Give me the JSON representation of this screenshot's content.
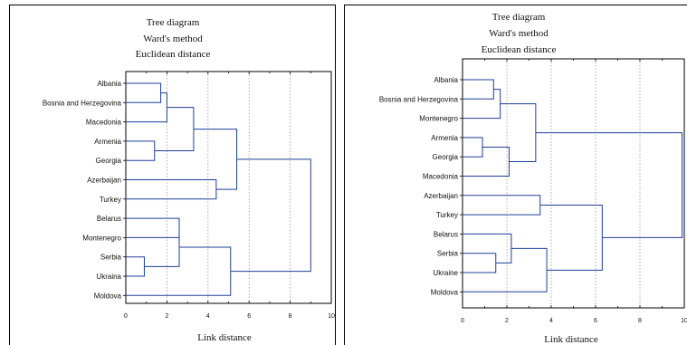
{
  "chart_data": [
    {
      "type": "dendrogram",
      "title": [
        "Tree diagram",
        "Ward's method",
        "Euclidean distance"
      ],
      "xlabel": "Link distance",
      "xlim": [
        0,
        10
      ],
      "xticks": [
        "0",
        "2",
        "4",
        "6",
        "8",
        "10"
      ],
      "grid": true,
      "leaves": [
        "Albania",
        "Bosnia and Herzegovina",
        "Macedonia",
        "Armenia",
        "Georgia",
        "Azerbaijan",
        "Turkey",
        "Belarus",
        "Montenegro",
        "Serbia",
        "Ukraina",
        "Moldova"
      ],
      "merges": [
        {
          "left": "Serbia",
          "right": "Ukraina",
          "height": 0.9
        },
        {
          "left": "Armenia",
          "right": "Georgia",
          "height": 1.4
        },
        {
          "left": "Albania",
          "right": "Bosnia and Herzegovina",
          "height": 1.7
        },
        {
          "left": 2,
          "right": "Macedonia",
          "height": 2.0
        },
        {
          "left": "Belarus",
          "right": "Montenegro",
          "height": 2.6
        },
        {
          "left": 4,
          "right": 0,
          "height": 2.6
        },
        {
          "left": 3,
          "right": 1,
          "height": 3.3
        },
        {
          "left": "Azerbaijan",
          "right": "Turkey",
          "height": 4.4
        },
        {
          "left": 5,
          "right": "Moldova",
          "height": 5.1
        },
        {
          "left": 6,
          "right": 7,
          "height": 5.4
        },
        {
          "left": 9,
          "right": 8,
          "height": 9.0
        }
      ]
    },
    {
      "type": "dendrogram",
      "title": [
        "Tree diagram",
        "Ward's method",
        "Euclidean distance"
      ],
      "xlabel": "Link distance",
      "xlim": [
        0,
        10
      ],
      "xticks": [
        "0",
        "2",
        "4",
        "6",
        "8",
        "10"
      ],
      "grid": true,
      "leaves": [
        "Albania",
        "Bosnia and Herzegovina",
        "Montenegro",
        "Armenia",
        "Georgia",
        "Macedonia",
        "Azerbaijan",
        "Turkey",
        "Belarus",
        "Serbia",
        "Ukraine",
        "Moldova"
      ],
      "merges": [
        {
          "left": "Armenia",
          "right": "Georgia",
          "height": 0.9
        },
        {
          "left": "Albania",
          "right": "Bosnia and Herzegovina",
          "height": 1.4
        },
        {
          "left": "Serbia",
          "right": "Ukraine",
          "height": 1.5
        },
        {
          "left": 1,
          "right": "Montenegro",
          "height": 1.7
        },
        {
          "left": 0,
          "right": "Macedonia",
          "height": 2.1
        },
        {
          "left": "Belarus",
          "right": 2,
          "height": 2.2
        },
        {
          "left": 3,
          "right": 4,
          "height": 3.3
        },
        {
          "left": "Azerbaijan",
          "right": "Turkey",
          "height": 3.5
        },
        {
          "left": 5,
          "right": "Moldova",
          "height": 3.8
        },
        {
          "left": 7,
          "right": 8,
          "height": 6.3
        },
        {
          "left": 6,
          "right": 9,
          "height": 9.9
        }
      ]
    }
  ]
}
